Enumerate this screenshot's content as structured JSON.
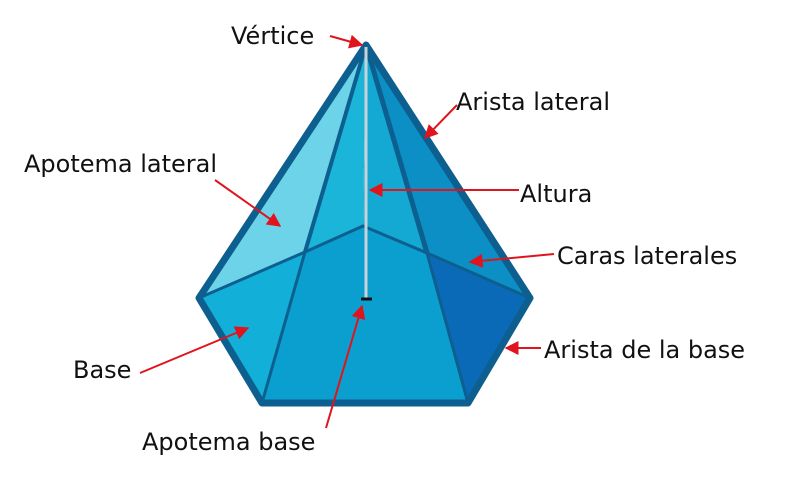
{
  "labels": {
    "vertex": "Vértice",
    "lateral_edge": "Arista lateral",
    "lateral_apothem": "Apotema lateral",
    "height": "Altura",
    "lateral_faces": "Caras laterales",
    "base": "Base",
    "base_edge": "Arista de la base",
    "base_apothem": "Apotema base"
  },
  "colors": {
    "arrow": "#e0141e",
    "edge": "#0d5f8f",
    "face_light": "#6dd3e8",
    "face_mid": "#19b3d6",
    "face_blue": "#0a9fcf",
    "face_side": "#0b8fc4",
    "face_dark": "#0a6ab8",
    "height_line": "#c7d3d9"
  }
}
